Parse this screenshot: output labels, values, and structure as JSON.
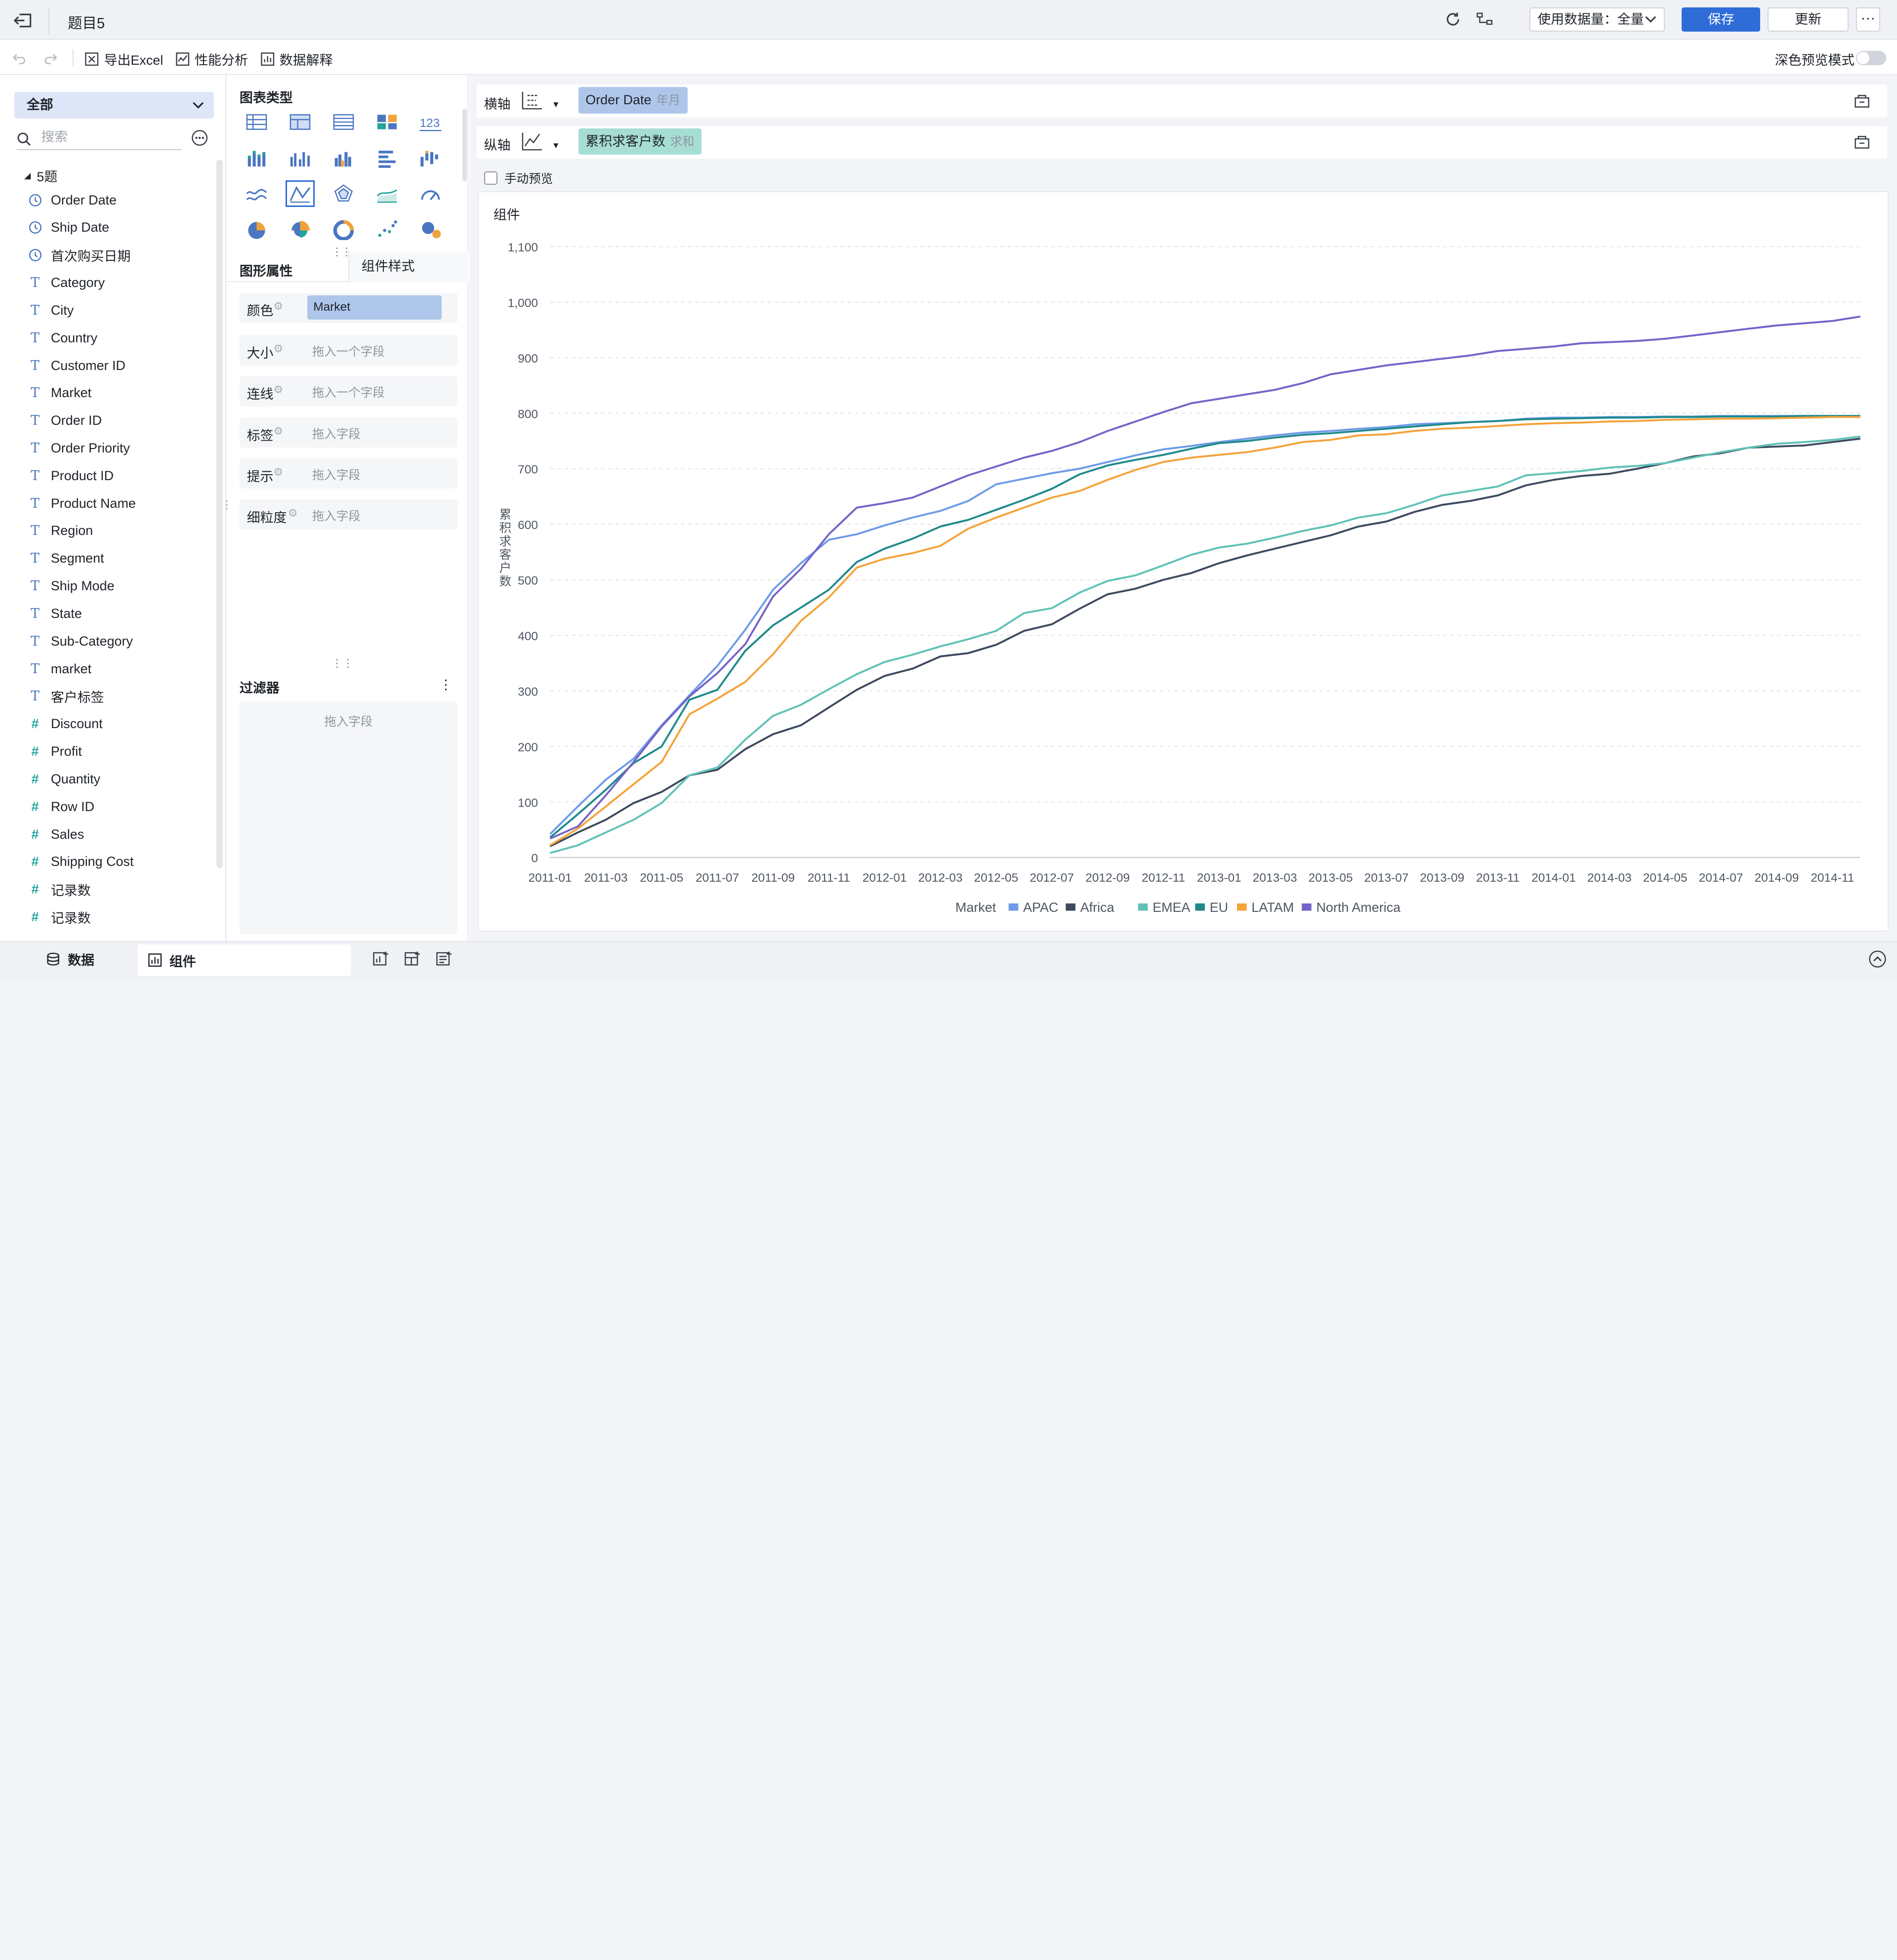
{
  "topbar": {
    "title": "题目5",
    "data_usage_label": "使用数据量：全量",
    "save": "保存",
    "update": "更新",
    "more": "···"
  },
  "toolbar": {
    "export_excel": "导出Excel",
    "perf": "性能分析",
    "explain": "数据解释",
    "dark_preview": "深色预览模式"
  },
  "left": {
    "scope": "全部",
    "search_placeholder": "搜索",
    "group": "5题",
    "fields": [
      {
        "name": "Order Date",
        "kind": "date"
      },
      {
        "name": "Ship Date",
        "kind": "date"
      },
      {
        "name": "首次购买日期",
        "kind": "date"
      },
      {
        "name": "Category",
        "kind": "text"
      },
      {
        "name": "City",
        "kind": "text"
      },
      {
        "name": "Country",
        "kind": "text"
      },
      {
        "name": "Customer ID",
        "kind": "text"
      },
      {
        "name": "Market",
        "kind": "text"
      },
      {
        "name": "Order ID",
        "kind": "text"
      },
      {
        "name": "Order Priority",
        "kind": "text"
      },
      {
        "name": "Product ID",
        "kind": "text"
      },
      {
        "name": "Product Name",
        "kind": "text"
      },
      {
        "name": "Region",
        "kind": "text"
      },
      {
        "name": "Segment",
        "kind": "text"
      },
      {
        "name": "Ship Mode",
        "kind": "text"
      },
      {
        "name": "State",
        "kind": "text"
      },
      {
        "name": "Sub-Category",
        "kind": "text"
      },
      {
        "name": "market",
        "kind": "text"
      },
      {
        "name": "客户标签",
        "kind": "text"
      },
      {
        "name": "Discount",
        "kind": "number"
      },
      {
        "name": "Profit",
        "kind": "number"
      },
      {
        "name": "Quantity",
        "kind": "number"
      },
      {
        "name": "Row ID",
        "kind": "number"
      },
      {
        "name": "Sales",
        "kind": "number"
      },
      {
        "name": "Shipping Cost",
        "kind": "number"
      },
      {
        "name": "记录数",
        "kind": "number"
      },
      {
        "name": "记录数",
        "kind": "number"
      }
    ]
  },
  "middle": {
    "chart_type_label": "图表类型",
    "tab_props": "图形属性",
    "tab_style": "组件样式",
    "props": [
      {
        "label": "颜色",
        "value": "Market",
        "filled": true
      },
      {
        "label": "大小",
        "value": "拖入一个字段",
        "filled": false
      },
      {
        "label": "连线",
        "value": "拖入一个字段",
        "filled": false
      },
      {
        "label": "标签",
        "value": "拖入字段",
        "filled": false
      },
      {
        "label": "提示",
        "value": "拖入字段",
        "filled": false
      },
      {
        "label": "细粒度",
        "value": "拖入字段",
        "filled": false
      }
    ],
    "filter_label": "过滤器",
    "filter_placeholder": "拖入字段"
  },
  "axes": {
    "x_label": "横轴",
    "x_field": "Order Date",
    "x_sub": "年月",
    "y_label": "纵轴",
    "y_field": "累积求客户数",
    "y_sub": "求和",
    "manual_preview": "手动预览"
  },
  "bottom": {
    "tab_data": "数据",
    "tab_component": "组件"
  },
  "colors": {
    "accent": "#2f6cd8",
    "x_pill": "#aec6ea",
    "y_pill": "#a6ddd4"
  },
  "chart_data": {
    "type": "line",
    "title": "组件",
    "xlabel": "",
    "ylabel": "累积求客户数",
    "ylim": [
      0,
      1100
    ],
    "yticks": [
      0,
      100,
      200,
      300,
      400,
      500,
      600,
      700,
      800,
      900,
      1000,
      1100
    ],
    "ytick_labels": [
      "0",
      "100",
      "200",
      "300",
      "400",
      "500",
      "600",
      "700",
      "800",
      "900",
      "1,000",
      "1,100"
    ],
    "x": [
      "2011-01",
      "2011-02",
      "2011-03",
      "2011-04",
      "2011-05",
      "2011-06",
      "2011-07",
      "2011-08",
      "2011-09",
      "2011-10",
      "2011-11",
      "2011-12",
      "2012-01",
      "2012-02",
      "2012-03",
      "2012-04",
      "2012-05",
      "2012-06",
      "2012-07",
      "2012-08",
      "2012-09",
      "2012-10",
      "2012-11",
      "2012-12",
      "2013-01",
      "2013-02",
      "2013-03",
      "2013-04",
      "2013-05",
      "2013-06",
      "2013-07",
      "2013-08",
      "2013-09",
      "2013-10",
      "2013-11",
      "2013-12",
      "2014-01",
      "2014-02",
      "2014-03",
      "2014-04",
      "2014-05",
      "2014-06",
      "2014-07",
      "2014-08",
      "2014-09",
      "2014-10",
      "2014-11",
      "2014-12"
    ],
    "xtick_labels": [
      "2011-01",
      "2011-03",
      "2011-05",
      "2011-07",
      "2011-09",
      "2011-11",
      "2012-01",
      "2012-03",
      "2012-05",
      "2012-07",
      "2012-09",
      "2012-11",
      "2013-01",
      "2013-03",
      "2013-05",
      "2013-07",
      "2013-09",
      "2013-11",
      "2014-01",
      "2014-03",
      "2014-05",
      "2014-07",
      "2014-09",
      "2014-11"
    ],
    "legend_title": "Market",
    "legend_position": "bottom",
    "grid": true,
    "series": [
      {
        "name": "APAC",
        "color": "#6e9be8",
        "values": [
          42,
          92,
          140,
          178,
          238,
          292,
          345,
          410,
          482,
          530,
          572,
          582,
          598,
          612,
          624,
          642,
          672,
          682,
          692,
          700,
          712,
          724,
          735,
          741,
          748,
          754,
          760,
          765,
          768,
          772,
          775,
          780,
          782,
          784,
          786,
          790,
          792,
          792,
          793,
          793,
          794,
          794,
          795,
          795,
          795,
          795,
          795,
          795
        ]
      },
      {
        "name": "Africa",
        "color": "#3d4a5e",
        "values": [
          20,
          45,
          68,
          98,
          118,
          148,
          158,
          195,
          222,
          238,
          270,
          302,
          327,
          340,
          362,
          368,
          383,
          408,
          420,
          448,
          474,
          484,
          500,
          512,
          530,
          544,
          556,
          568,
          580,
          596,
          605,
          622,
          635,
          642,
          652,
          670,
          680,
          687,
          691,
          700,
          710,
          722,
          728,
          738,
          740,
          742,
          748,
          754
        ]
      },
      {
        "name": "EMEA",
        "color": "#5fc2b6",
        "values": [
          8,
          22,
          45,
          68,
          98,
          148,
          162,
          212,
          255,
          275,
          303,
          330,
          352,
          365,
          380,
          393,
          408,
          440,
          449,
          477,
          498,
          508,
          526,
          545,
          558,
          565,
          576,
          588,
          598,
          612,
          620,
          635,
          652,
          660,
          668,
          688,
          692,
          696,
          702,
          705,
          710,
          720,
          730,
          738,
          745,
          748,
          752,
          758
        ]
      },
      {
        "name": "EU",
        "color": "#1f8a8c",
        "values": [
          36,
          78,
          122,
          170,
          200,
          284,
          302,
          372,
          418,
          450,
          482,
          532,
          556,
          574,
          596,
          608,
          626,
          644,
          664,
          690,
          706,
          716,
          725,
          736,
          746,
          750,
          756,
          761,
          764,
          768,
          772,
          776,
          780,
          784,
          786,
          789,
          790,
          791,
          792,
          792,
          793,
          793,
          794,
          794,
          794,
          795,
          795,
          795
        ]
      },
      {
        "name": "LATAM",
        "color": "#f5a33b",
        "values": [
          22,
          52,
          92,
          132,
          172,
          258,
          286,
          316,
          366,
          426,
          468,
          522,
          538,
          548,
          561,
          592,
          612,
          630,
          648,
          660,
          680,
          698,
          712,
          720,
          725,
          730,
          738,
          748,
          752,
          760,
          762,
          768,
          772,
          774,
          777,
          780,
          782,
          783,
          785,
          786,
          788,
          789,
          790,
          790,
          791,
          792,
          793,
          793
        ]
      },
      {
        "name": "North America",
        "color": "#7663c9",
        "values": [
          34,
          56,
          112,
          172,
          236,
          290,
          332,
          384,
          470,
          520,
          582,
          630,
          638,
          648,
          668,
          688,
          704,
          720,
          732,
          748,
          768,
          785,
          802,
          818,
          826,
          834,
          842,
          854,
          870,
          878,
          886,
          892,
          898,
          904,
          912,
          916,
          920,
          926,
          928,
          930,
          934,
          940,
          946,
          952,
          958,
          962,
          966,
          974
        ]
      }
    ]
  }
}
